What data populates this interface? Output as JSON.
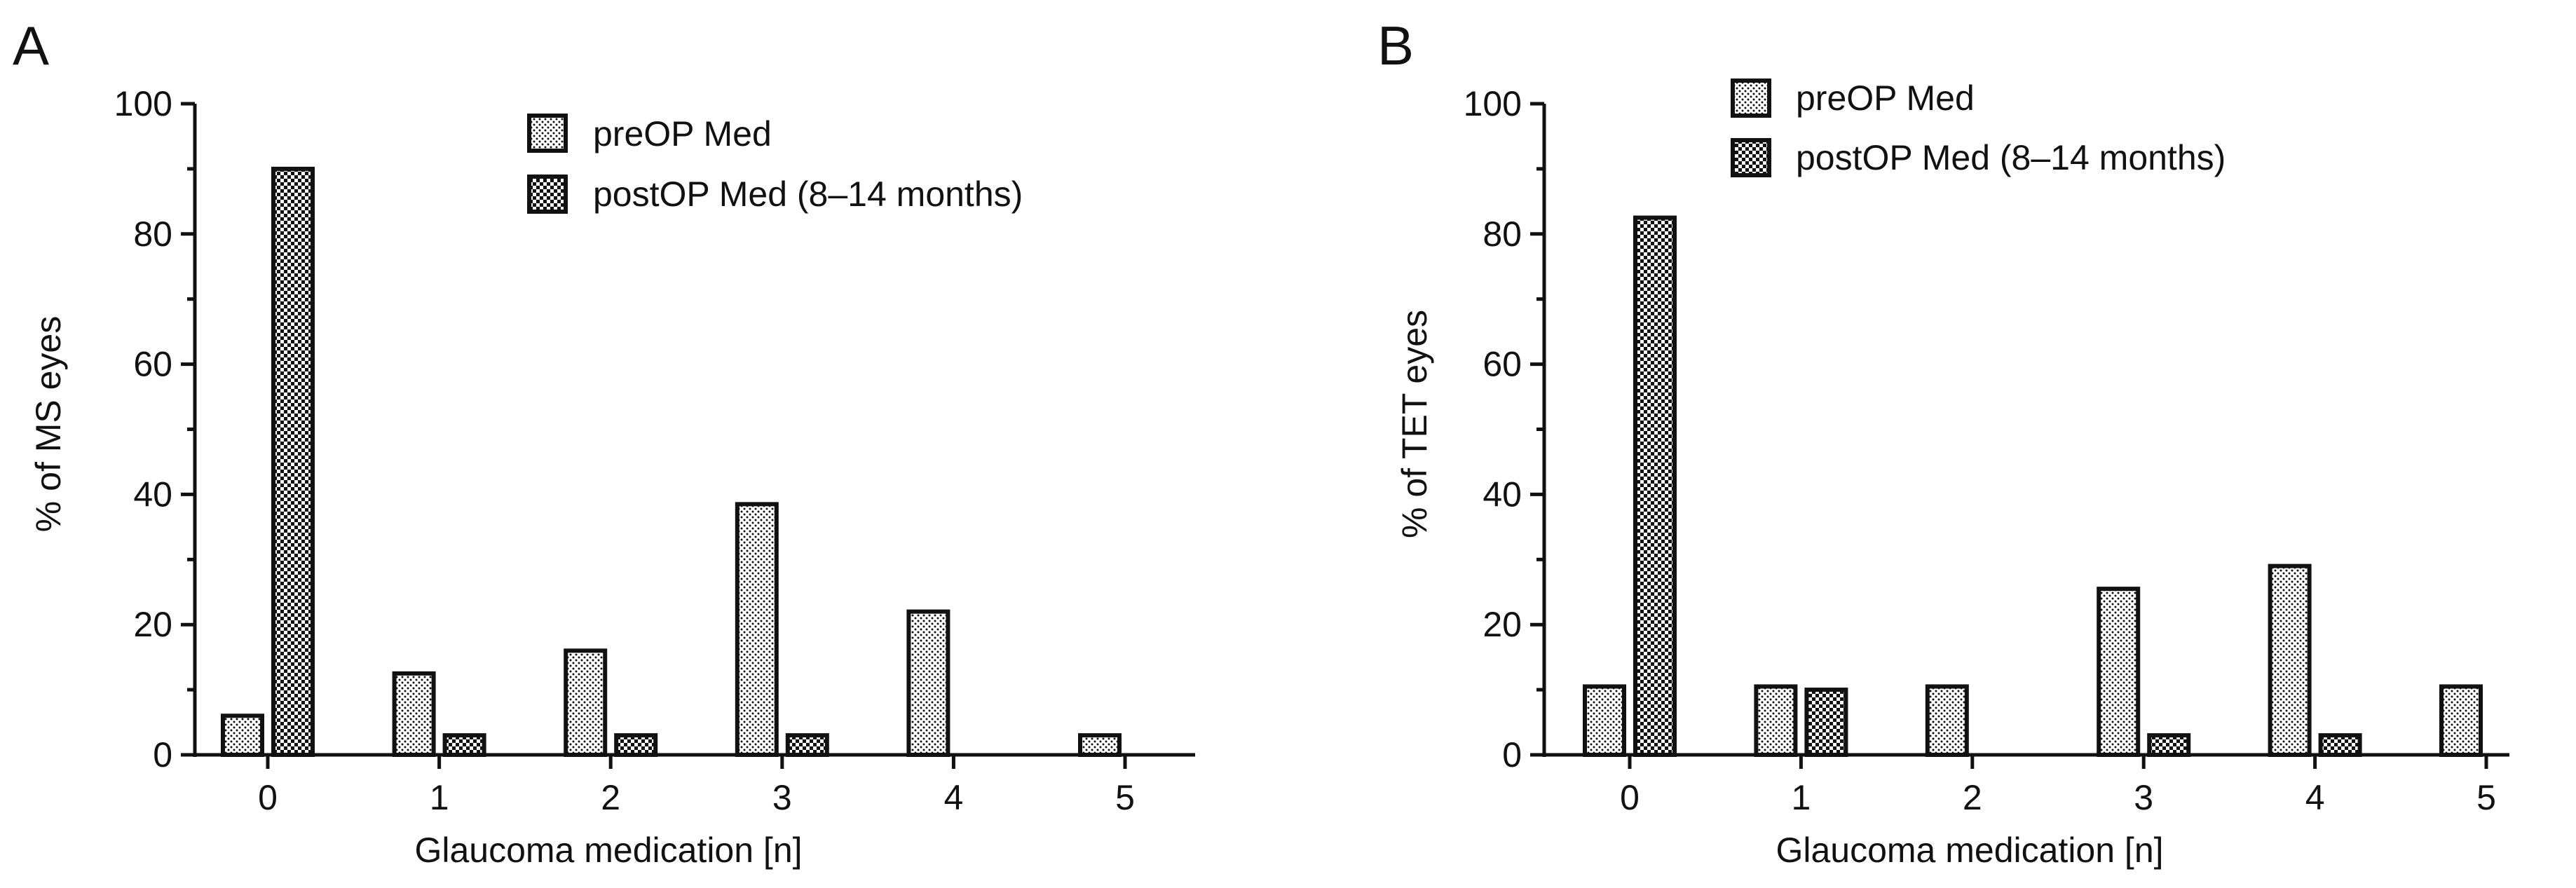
{
  "colors": {
    "ink": "#111111",
    "background": "#ffffff",
    "bar_fill": "#ffffff"
  },
  "chart_data": [
    {
      "panel_label": "A",
      "type": "bar",
      "categories": [
        "0",
        "1",
        "2",
        "3",
        "4",
        "5"
      ],
      "xlabel": "Glaucoma medication [n]",
      "ylabel": "% of MS eyes",
      "ylim": [
        0,
        100
      ],
      "yticks": [
        "0",
        "20",
        "40",
        "60",
        "80",
        "100"
      ],
      "legend_position": "top-center",
      "series": [
        {
          "name": "preOP Med",
          "pattern": "dots",
          "values": [
            6,
            12.5,
            16,
            38.5,
            22,
            3
          ]
        },
        {
          "name": "postOP Med (8–14 months)",
          "pattern": "checker",
          "values": [
            90,
            3,
            3,
            3,
            0,
            0
          ]
        }
      ]
    },
    {
      "panel_label": "B",
      "type": "bar",
      "categories": [
        "0",
        "1",
        "2",
        "3",
        "4",
        "5"
      ],
      "xlabel": "Glaucoma medication [n]",
      "ylabel": "% of TET eyes",
      "ylim": [
        0,
        100
      ],
      "yticks": [
        "0",
        "20",
        "40",
        "60",
        "80",
        "100"
      ],
      "legend_position": "top-center",
      "series": [
        {
          "name": "preOP Med",
          "pattern": "dots",
          "values": [
            10.5,
            10.5,
            10.5,
            25.5,
            29,
            10.5
          ]
        },
        {
          "name": "postOP Med (8–14 months)",
          "pattern": "checker",
          "values": [
            82.5,
            10,
            0,
            3,
            3,
            0
          ]
        }
      ]
    }
  ]
}
